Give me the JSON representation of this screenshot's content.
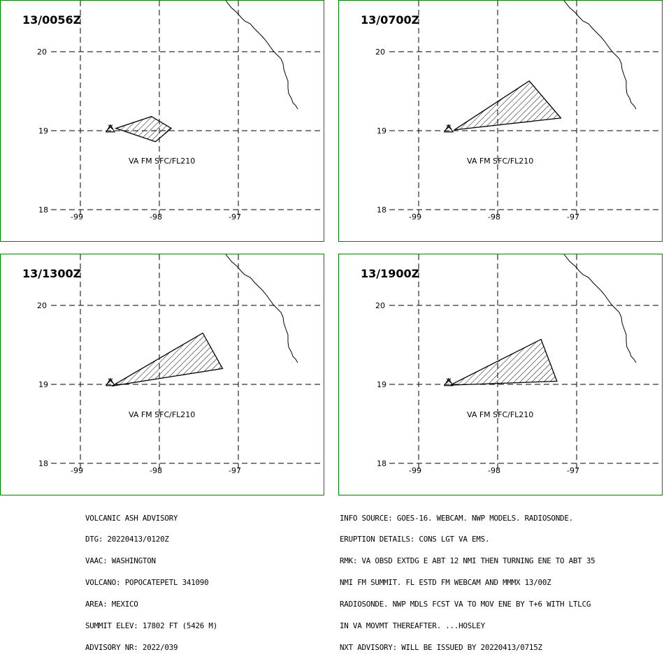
{
  "panels": [
    {
      "time": "13/0056Z",
      "level_label": "VA FM SFC/FL210",
      "ash_polygon": [
        [
          -98.55,
          19.03
        ],
        [
          -98.1,
          19.18
        ],
        [
          -97.85,
          19.03
        ],
        [
          -98.05,
          18.86
        ]
      ]
    },
    {
      "time": "13/0700Z",
      "level_label": "VA FM SFC/FL210",
      "ash_polygon": [
        [
          -98.55,
          19.01
        ],
        [
          -97.6,
          19.63
        ],
        [
          -97.2,
          19.16
        ]
      ]
    },
    {
      "time": "13/1300Z",
      "level_label": "VA FM SFC/FL210",
      "ash_polygon": [
        [
          -98.6,
          18.98
        ],
        [
          -97.45,
          19.65
        ],
        [
          -97.2,
          19.2
        ]
      ]
    },
    {
      "time": "13/1900Z",
      "level_label": "VA FM SFC/FL210",
      "ash_polygon": [
        [
          -98.6,
          18.99
        ],
        [
          -97.45,
          19.57
        ],
        [
          -97.25,
          19.04
        ]
      ]
    }
  ],
  "map": {
    "lon_ticks": [
      "-99",
      "-98",
      "-97"
    ],
    "lat_ticks": [
      "20",
      "19",
      "18"
    ],
    "lon_values": [
      -99,
      -98,
      -97
    ],
    "lat_values": [
      20,
      19,
      18
    ],
    "volcano": {
      "name": "POPOCATEPETL",
      "lon": -98.62,
      "lat": 19.02
    },
    "colors": {
      "frame": "#008000",
      "lines": "#000000"
    }
  },
  "advisory_left": [
    "VOLCANIC ASH ADVISORY",
    "DTG: 20220413/0120Z",
    "VAAC: WASHINGTON",
    "VOLCANO: POPOCATEPETL 341090",
    "AREA: MEXICO",
    "SUMMIT ELEV: 17802 FT (5426 M)",
    "ADVISORY NR: 2022/039"
  ],
  "advisory_right": [
    "INFO SOURCE: GOES-16. WEBCAM. NWP MODELS. RADIOSONDE.",
    "ERUPTION DETAILS: CONS LGT VA EMS.",
    "RMK: VA OBSD EXTDG E ABT 12 NMI THEN TURNING ENE TO ABT 35",
    "NMI FM SUMMIT. FL ESTD FM WEBCAM AND MMMX 13/00Z",
    "RADIOSONDE. NWP MDLS FCST VA TO MOV ENE BY T+6 WITH LTLCG",
    "IN VA MOVMT THEREAFTER. ...HOSLEY",
    "NXT ADVISORY: WILL BE ISSUED BY 20220413/0715Z"
  ]
}
